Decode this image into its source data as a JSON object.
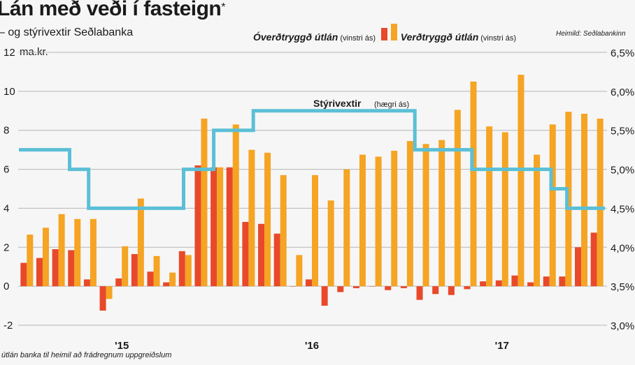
{
  "title": "Lán með veði í fasteign",
  "title_mark": "*",
  "subtitle": "– og stýrivextir Seðlabanka",
  "source": "Heimild: Seðlabankinn",
  "footnote": "útlán banka til heimil að frádregnum uppgreiðslum",
  "colors": {
    "red": "#e8492a",
    "orange": "#f5a423",
    "line": "#5bbfd6",
    "grid": "#b5b5b5"
  },
  "chart_data": {
    "type": "bar",
    "left_axis": {
      "unit": "ma.kr.",
      "ylim": [
        -2,
        12
      ],
      "ticks": [
        -2,
        0,
        2,
        4,
        6,
        8,
        10,
        12
      ]
    },
    "right_axis": {
      "ylim": [
        3.0,
        6.5
      ],
      "ticks": [
        "3,0%",
        "3,5%",
        "4,0%",
        "4,5%",
        "5,0%",
        "5,5%",
        "6,0%",
        "6,5%"
      ]
    },
    "x_labels": [
      {
        "label": "'15",
        "index": 6
      },
      {
        "label": "'16",
        "index": 18
      },
      {
        "label": "'17",
        "index": 30
      }
    ],
    "series": [
      {
        "name": "Óverðtryggð útlán",
        "note": "(vinstri ás)",
        "color": "#e8492a",
        "values": [
          1.2,
          1.45,
          1.9,
          1.85,
          0.35,
          -1.25,
          0.4,
          1.65,
          0.75,
          0.2,
          1.8,
          6.2,
          6.1,
          6.1,
          3.3,
          3.2,
          2.7,
          0.0,
          0.35,
          -1.0,
          -0.3,
          -0.1,
          0.0,
          -0.2,
          -0.1,
          -0.7,
          -0.4,
          -0.45,
          -0.15,
          0.25,
          0.3,
          0.55,
          0.2,
          0.5,
          0.5,
          2.0,
          2.75
        ]
      },
      {
        "name": "Verðtryggð útlán",
        "note": "(vinstri ás)",
        "color": "#f5a423",
        "values": [
          2.65,
          3.0,
          3.7,
          3.45,
          3.45,
          -0.65,
          2.05,
          4.5,
          1.55,
          0.7,
          1.6,
          8.6,
          6.1,
          8.3,
          7.0,
          6.85,
          5.7,
          1.6,
          5.7,
          4.4,
          6.0,
          6.75,
          6.65,
          6.95,
          7.45,
          7.3,
          7.5,
          9.05,
          10.5,
          8.2,
          7.9,
          10.85,
          6.75,
          8.3,
          8.95,
          8.85,
          8.6
        ]
      },
      {
        "name": "Stýrivextir",
        "note": "(hægri ás)",
        "color": "#5bbfd6",
        "axis": "right",
        "steps": [
          {
            "from": 0.0,
            "to": 3.2,
            "rate": 5.25
          },
          {
            "from": 3.2,
            "to": 4.4,
            "rate": 5.0
          },
          {
            "from": 4.4,
            "to": 10.4,
            "rate": 4.5
          },
          {
            "from": 10.4,
            "to": 12.3,
            "rate": 5.0
          },
          {
            "from": 12.3,
            "to": 14.8,
            "rate": 5.5
          },
          {
            "from": 14.8,
            "to": 25.0,
            "rate": 5.75
          },
          {
            "from": 25.0,
            "to": 28.6,
            "rate": 5.25
          },
          {
            "from": 28.6,
            "to": 33.6,
            "rate": 5.0
          },
          {
            "from": 33.6,
            "to": 34.6,
            "rate": 4.75
          },
          {
            "from": 34.6,
            "to": 37.0,
            "rate": 4.5
          }
        ]
      }
    ]
  }
}
